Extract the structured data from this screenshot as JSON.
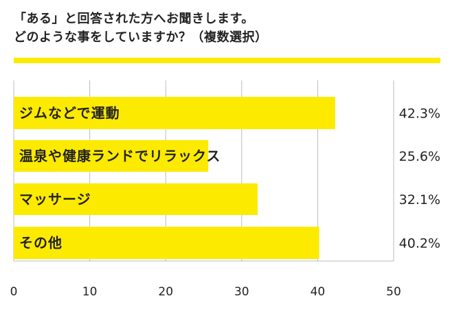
{
  "header": {
    "title_line1": "「ある」と回答された方へお聞きします。",
    "title_line2": "どのような事をしていますか？（複数選択）"
  },
  "colors": {
    "bar": "#fcea00",
    "rule": "#fcea00",
    "grid": "#bbbbbb",
    "text": "#222222"
  },
  "chart_data": {
    "type": "bar",
    "orientation": "horizontal",
    "categories": [
      "ジムなどで運動",
      "温泉や健康ランドでリラックス",
      "マッサージ",
      "その他"
    ],
    "values": [
      42.3,
      25.6,
      32.1,
      40.2
    ],
    "value_labels": [
      "42.3%",
      "25.6%",
      "32.1%",
      "40.2%"
    ],
    "xlim": [
      0,
      50
    ],
    "ticks": [
      0,
      10,
      20,
      30,
      40,
      50
    ],
    "grid": true
  }
}
